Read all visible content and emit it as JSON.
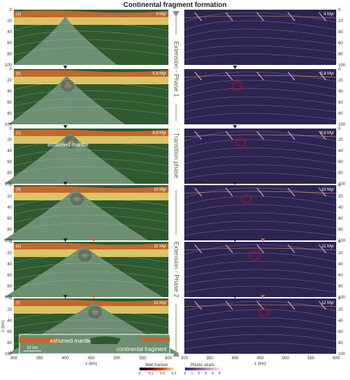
{
  "title": "Continental fragment formation",
  "panels": [
    {
      "letter": "(a)",
      "time": "4 Myr"
    },
    {
      "letter": "(b)",
      "time": "5.8 Myr"
    },
    {
      "letter": "(c)",
      "time": "8.8 Myr"
    },
    {
      "letter": "(d)",
      "time": "10 Myr"
    },
    {
      "letter": "(e)",
      "time": "11 Myr"
    },
    {
      "letter": "(f)",
      "time": "12 Myr"
    }
  ],
  "phases": [
    "Extension - Phase 1",
    "Transition phase",
    "Extension - Phase 2"
  ],
  "annotations": {
    "exhumed_mantle": "exhumed mantle",
    "inset_exhumed": "exhumed mantle",
    "inset_fragment": "continental fragment",
    "scale": "10 km"
  },
  "axes": {
    "xlabel": "x (km)",
    "ylabel": "z (km)",
    "xticks": [
      "300",
      "350",
      "400",
      "450",
      "500",
      "550",
      "600"
    ],
    "yticks": [
      "0",
      "20",
      "40",
      "60",
      "80",
      "100"
    ]
  },
  "colorbars": {
    "melt": {
      "label": "Melt fraction",
      "ticks": [
        "0",
        "0.1",
        "0.2",
        "0.3"
      ]
    },
    "strain": {
      "label": "Plastic strain",
      "ticks": [
        "0",
        "1",
        "2",
        "3",
        "4",
        "5"
      ]
    }
  },
  "colors": {
    "upper_crust": "#c0692b",
    "lower_crust": "#d9c466",
    "mantle": "#2f5a30",
    "exhumed": "#6e8f73",
    "strain_bg": "#2e2452",
    "black_marker": "#222222",
    "orange_marker": "#e0601f"
  }
}
